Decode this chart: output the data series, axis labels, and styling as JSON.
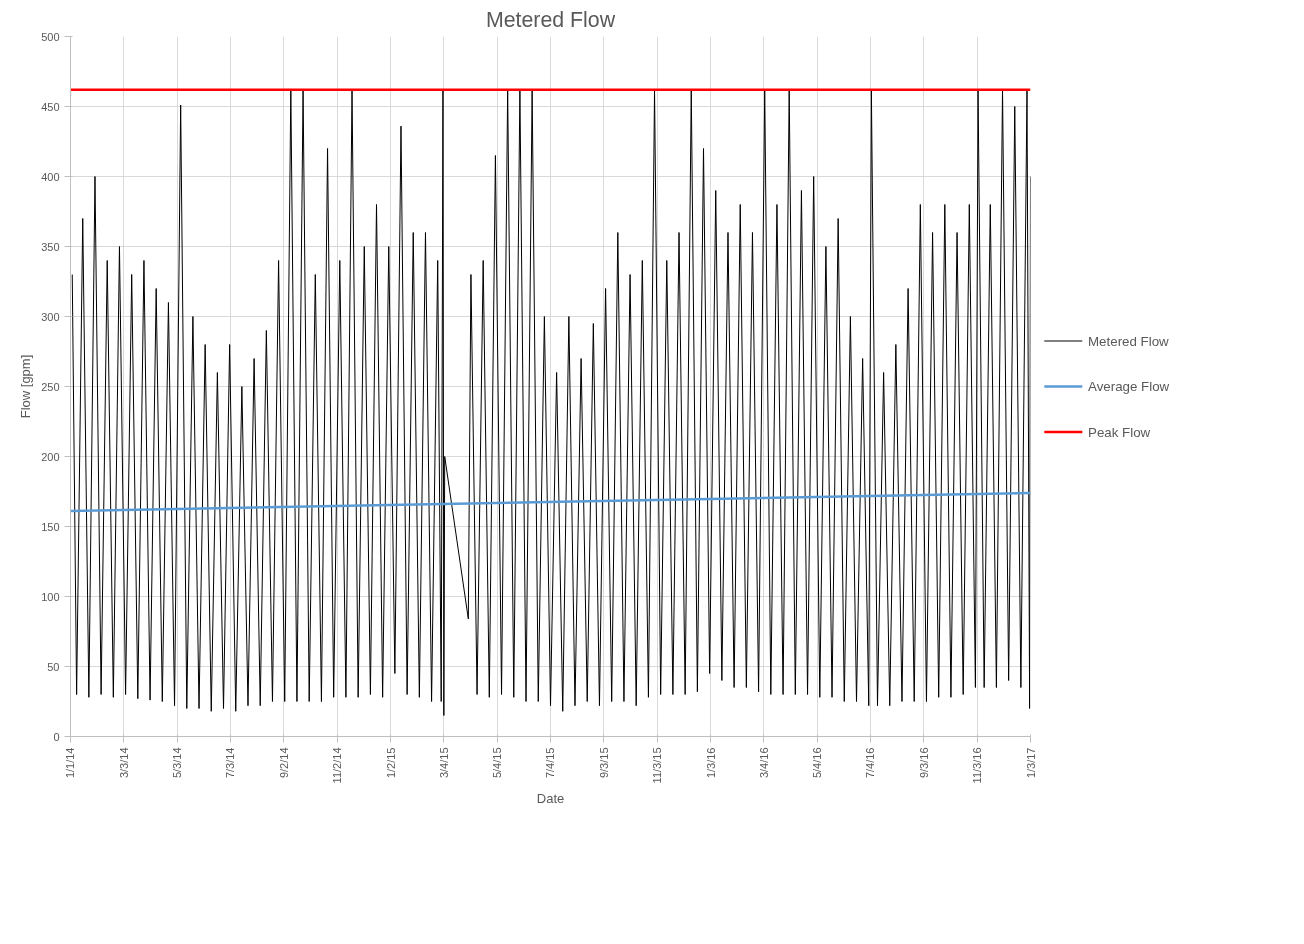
{
  "chart_data": {
    "type": "line",
    "title": "Metered Flow",
    "xlabel": "Date",
    "ylabel": "Flow [gpm]",
    "xlim": [
      "2014-01-01",
      "2017-01-03"
    ],
    "xticks": [
      {
        "value": "2014-01-01",
        "label": "1/1/14"
      },
      {
        "value": "2014-03-03",
        "label": "3/3/14"
      },
      {
        "value": "2014-05-03",
        "label": "5/3/14"
      },
      {
        "value": "2014-07-03",
        "label": "7/3/14"
      },
      {
        "value": "2014-09-02",
        "label": "9/2/14"
      },
      {
        "value": "2014-11-02",
        "label": "11/2/14"
      },
      {
        "value": "2015-01-02",
        "label": "1/2/15"
      },
      {
        "value": "2015-03-04",
        "label": "3/4/15"
      },
      {
        "value": "2015-05-04",
        "label": "5/4/15"
      },
      {
        "value": "2015-07-04",
        "label": "7/4/15"
      },
      {
        "value": "2015-09-03",
        "label": "9/3/15"
      },
      {
        "value": "2015-11-03",
        "label": "11/3/15"
      },
      {
        "value": "2016-01-03",
        "label": "1/3/16"
      },
      {
        "value": "2016-03-04",
        "label": "3/4/16"
      },
      {
        "value": "2016-05-04",
        "label": "5/4/16"
      },
      {
        "value": "2016-07-04",
        "label": "7/4/16"
      },
      {
        "value": "2016-09-03",
        "label": "9/3/16"
      },
      {
        "value": "2016-11-03",
        "label": "11/3/16"
      },
      {
        "value": "2017-01-03",
        "label": "1/3/17"
      }
    ],
    "ylim": [
      0,
      500
    ],
    "yticks": [
      0,
      50,
      100,
      150,
      200,
      250,
      300,
      350,
      400,
      450,
      500
    ],
    "grid": true,
    "legend": "right",
    "line_style": "solid",
    "marker": "none",
    "series": [
      {
        "name": "Metered Flow",
        "color": "#000000",
        "x": [
          "2014-01-03",
          "2014-01-08",
          "2014-01-15",
          "2014-01-22",
          "2014-01-29",
          "2014-02-05",
          "2014-02-12",
          "2014-02-19",
          "2014-02-26",
          "2014-03-05",
          "2014-03-12",
          "2014-03-19",
          "2014-03-26",
          "2014-04-02",
          "2014-04-09",
          "2014-04-16",
          "2014-04-23",
          "2014-04-30",
          "2014-05-07",
          "2014-05-14",
          "2014-05-21",
          "2014-05-28",
          "2014-06-04",
          "2014-06-11",
          "2014-06-18",
          "2014-06-25",
          "2014-07-02",
          "2014-07-09",
          "2014-07-16",
          "2014-07-23",
          "2014-07-30",
          "2014-08-06",
          "2014-08-13",
          "2014-08-20",
          "2014-08-27",
          "2014-09-03",
          "2014-09-10",
          "2014-09-17",
          "2014-09-24",
          "2014-10-01",
          "2014-10-08",
          "2014-10-15",
          "2014-10-22",
          "2014-10-29",
          "2014-11-05",
          "2014-11-12",
          "2014-11-19",
          "2014-11-26",
          "2014-12-03",
          "2014-12-10",
          "2014-12-17",
          "2014-12-24",
          "2014-12-31",
          "2015-01-07",
          "2015-01-14",
          "2015-01-21",
          "2015-01-28",
          "2015-02-04",
          "2015-02-11",
          "2015-02-18",
          "2015-02-25",
          "2015-03-01",
          "2015-03-03",
          "2015-03-04",
          "2015-03-05",
          "2015-04-01",
          "2015-04-04",
          "2015-04-11",
          "2015-04-18",
          "2015-04-25",
          "2015-05-02",
          "2015-05-09",
          "2015-05-16",
          "2015-05-23",
          "2015-05-30",
          "2015-06-06",
          "2015-06-13",
          "2015-06-20",
          "2015-06-27",
          "2015-07-04",
          "2015-07-11",
          "2015-07-18",
          "2015-07-25",
          "2015-08-01",
          "2015-08-08",
          "2015-08-15",
          "2015-08-22",
          "2015-08-29",
          "2015-09-05",
          "2015-09-12",
          "2015-09-19",
          "2015-09-26",
          "2015-10-03",
          "2015-10-10",
          "2015-10-17",
          "2015-10-24",
          "2015-10-31",
          "2015-11-07",
          "2015-11-14",
          "2015-11-21",
          "2015-11-28",
          "2015-12-05",
          "2015-12-12",
          "2015-12-19",
          "2015-12-26",
          "2016-01-02",
          "2016-01-09",
          "2016-01-16",
          "2016-01-23",
          "2016-01-30",
          "2016-02-06",
          "2016-02-13",
          "2016-02-20",
          "2016-02-27",
          "2016-03-05",
          "2016-03-12",
          "2016-03-19",
          "2016-03-26",
          "2016-04-02",
          "2016-04-09",
          "2016-04-16",
          "2016-04-23",
          "2016-04-30",
          "2016-05-07",
          "2016-05-14",
          "2016-05-21",
          "2016-05-28",
          "2016-06-04",
          "2016-06-11",
          "2016-06-18",
          "2016-06-25",
          "2016-07-02",
          "2016-07-05",
          "2016-07-12",
          "2016-07-19",
          "2016-07-26",
          "2016-08-02",
          "2016-08-09",
          "2016-08-16",
          "2016-08-23",
          "2016-08-30",
          "2016-09-06",
          "2016-09-13",
          "2016-09-20",
          "2016-09-27",
          "2016-10-04",
          "2016-10-11",
          "2016-10-18",
          "2016-10-25",
          "2016-11-01",
          "2016-11-04",
          "2016-11-11",
          "2016-11-18",
          "2016-11-25",
          "2016-12-02",
          "2016-12-09",
          "2016-12-16",
          "2016-12-23",
          "2016-12-30",
          "2017-01-02",
          "2017-01-03"
        ],
        "values": [
          330,
          30,
          370,
          28,
          400,
          30,
          340,
          28,
          350,
          30,
          330,
          27,
          340,
          26,
          320,
          25,
          310,
          22,
          451,
          20,
          300,
          20,
          280,
          18,
          260,
          20,
          280,
          18,
          250,
          22,
          270,
          22,
          290,
          25,
          340,
          25,
          462,
          25,
          462,
          25,
          330,
          25,
          420,
          28,
          340,
          28,
          462,
          28,
          350,
          30,
          380,
          28,
          350,
          45,
          436,
          30,
          360,
          28,
          360,
          25,
          340,
          25,
          462,
          15,
          200,
          84,
          330,
          30,
          340,
          28,
          415,
          30,
          462,
          28,
          462,
          25,
          462,
          25,
          300,
          22,
          260,
          18,
          300,
          22,
          270,
          25,
          295,
          22,
          320,
          25,
          360,
          25,
          330,
          22,
          340,
          28,
          462,
          30,
          340,
          30,
          360,
          30,
          462,
          32,
          420,
          45,
          390,
          40,
          360,
          35,
          380,
          35,
          360,
          32,
          462,
          30,
          380,
          30,
          462,
          30,
          390,
          30,
          400,
          28,
          350,
          28,
          370,
          25,
          300,
          25,
          270,
          22,
          462,
          22,
          260,
          22,
          280,
          25,
          320,
          25,
          380,
          25,
          360,
          28,
          380,
          28,
          360,
          30,
          380,
          35,
          462,
          35,
          380,
          35,
          462,
          40,
          450,
          35,
          462,
          20,
          400
        ]
      },
      {
        "name": "Average Flow",
        "color": "#5b9bd5",
        "x": [
          "2014-01-01",
          "2017-01-03"
        ],
        "values": [
          161,
          174
        ]
      },
      {
        "name": "Peak Flow",
        "color": "#ff0000",
        "x": [
          "2014-01-01",
          "2017-01-03"
        ],
        "values": [
          462,
          462
        ]
      }
    ]
  }
}
